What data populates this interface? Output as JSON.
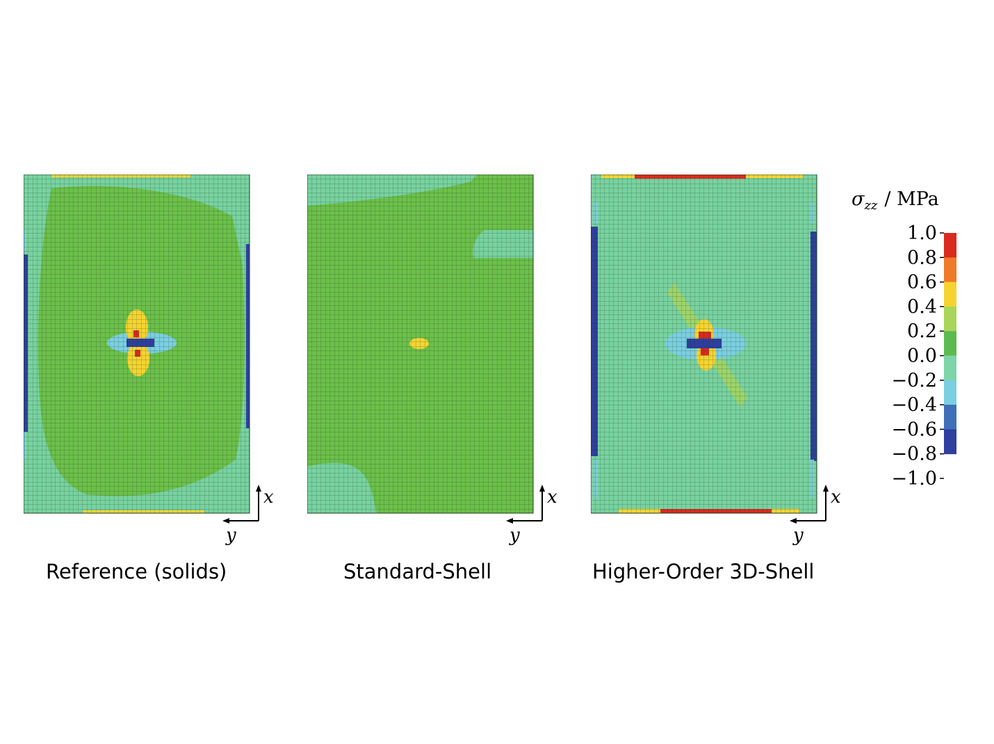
{
  "panels": [
    {
      "id": "reference",
      "caption": "Reference (solids)"
    },
    {
      "id": "standard",
      "caption": "Standard-Shell"
    },
    {
      "id": "higher",
      "caption": "Higher-Order 3D-Shell"
    }
  ],
  "axes": {
    "x_label": "x",
    "y_label": "y"
  },
  "colorbar": {
    "symbol": "σ",
    "subscript": "zz",
    "unit": "/ MPa",
    "ticks": [
      "1.0",
      "0.8",
      "0.6",
      "0.4",
      "0.2",
      "0.0",
      "−0.2",
      "−0.4",
      "−0.6",
      "−0.8",
      "−1.0"
    ],
    "colors": [
      "#d92b1f",
      "#ef7a28",
      "#f5d431",
      "#a9d65a",
      "#5cbb4e",
      "#7dd5a8",
      "#7bcfe0",
      "#3f6fb7",
      "#2e3f9e"
    ]
  },
  "palette": {
    "mesh_green": "#6cc04a",
    "mesh_teal": "#78d2a0",
    "grid_line": "#1e3a1e"
  }
}
